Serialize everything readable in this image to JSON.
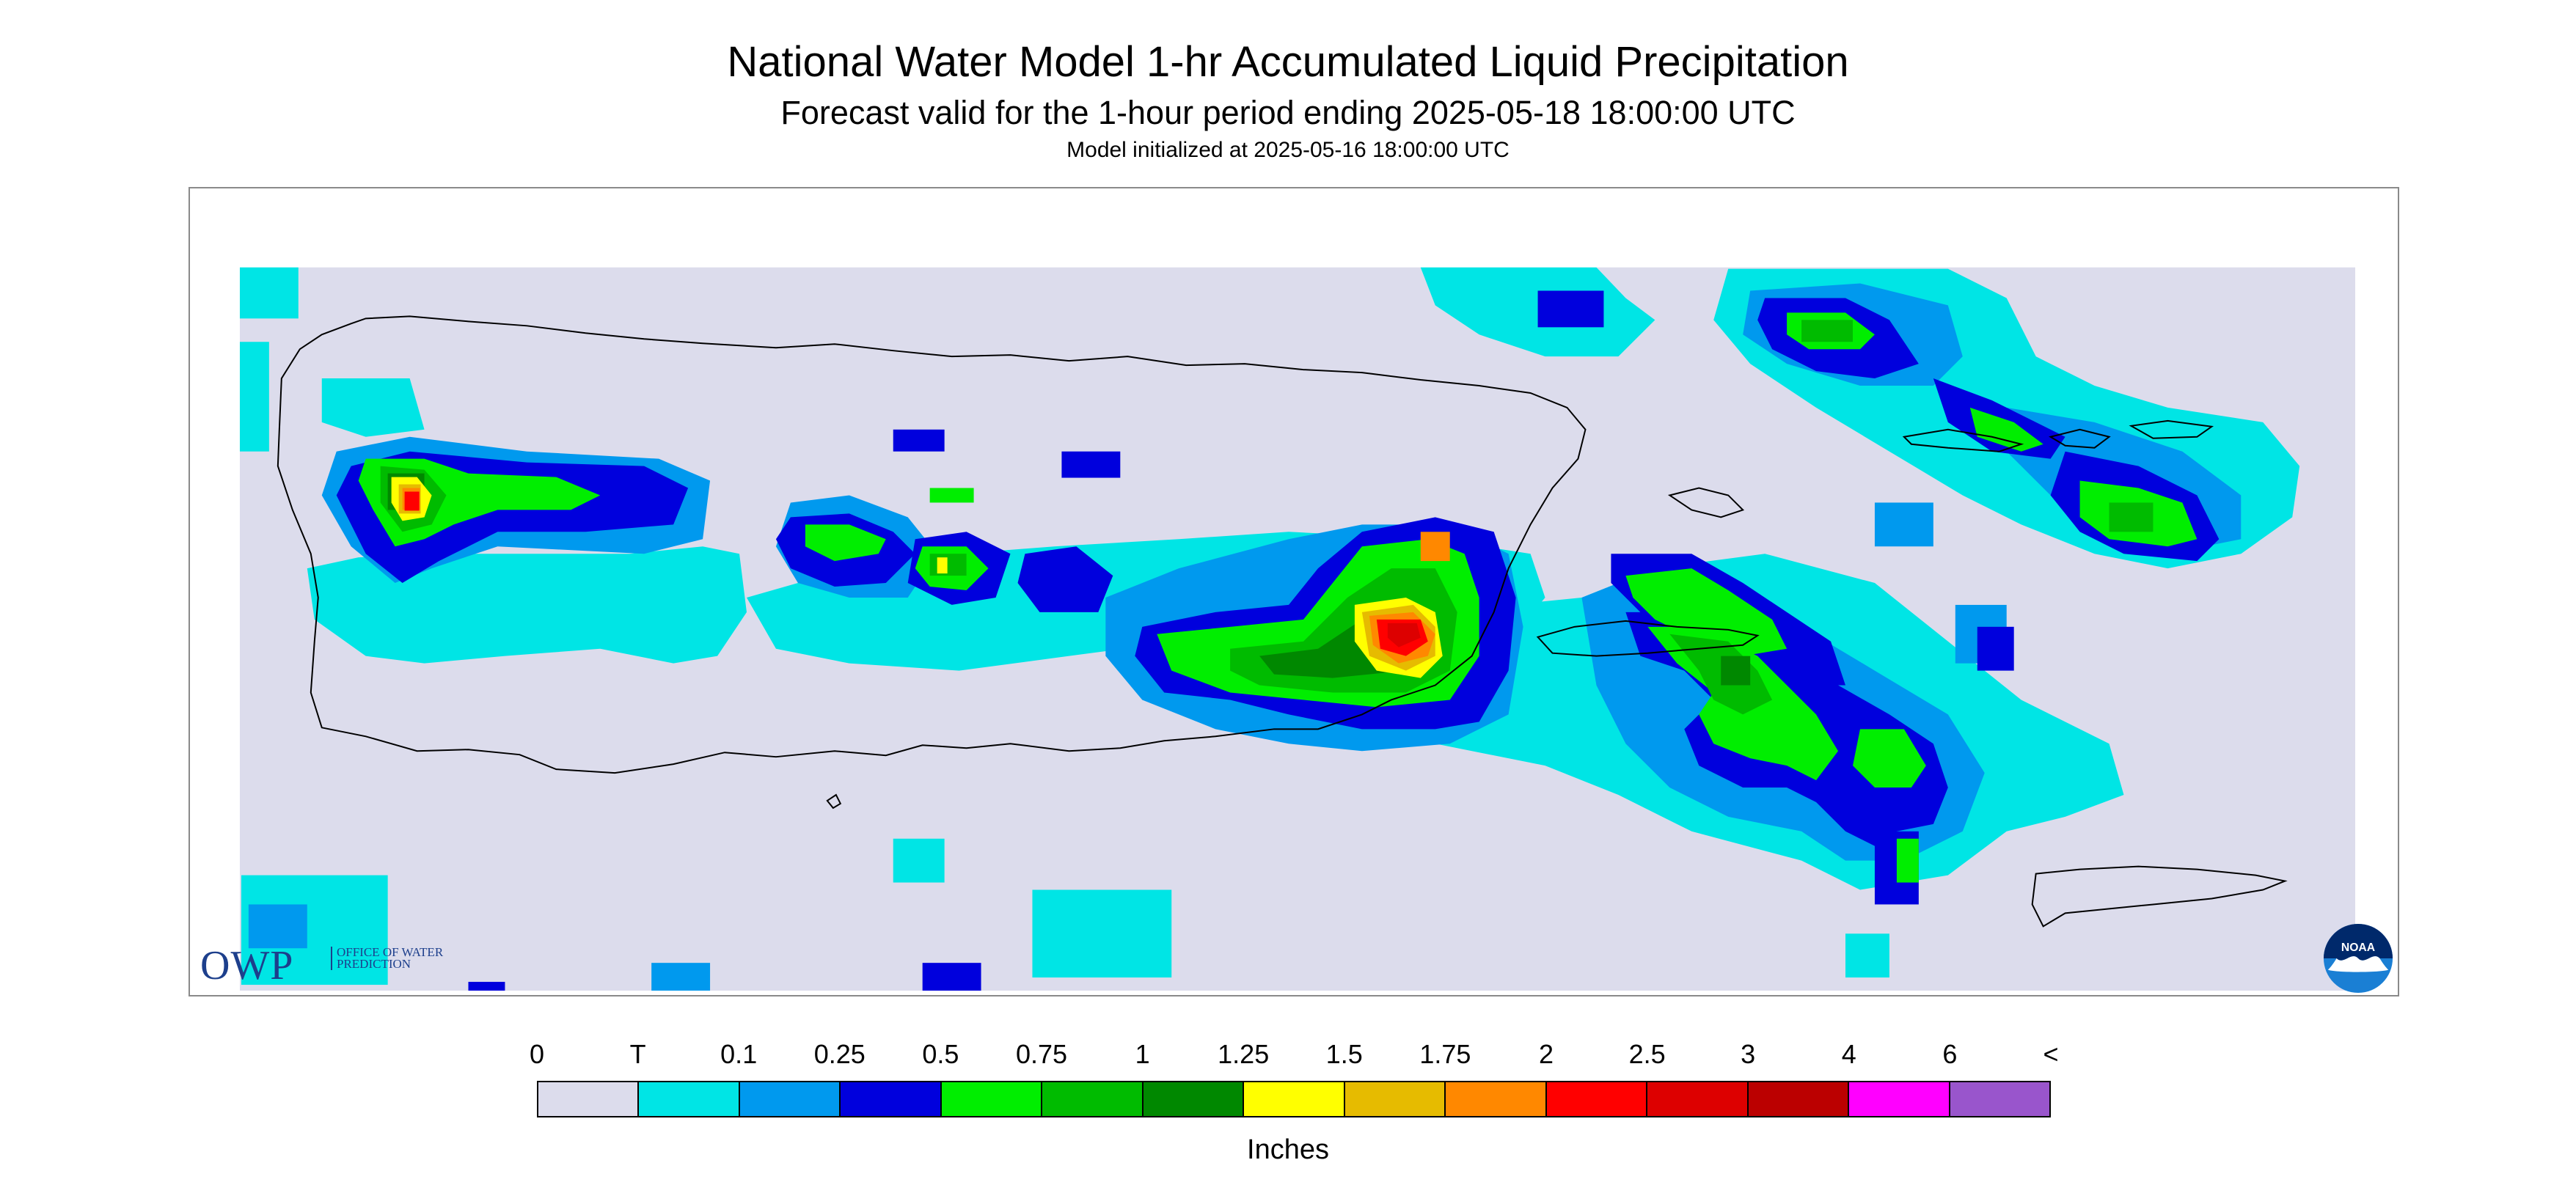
{
  "header": {
    "title": "National Water Model 1-hr Accumulated Liquid Precipitation",
    "subtitle": "Forecast valid for the 1-hour period ending 2025-05-18 18:00:00 UTC",
    "initialized": "Model initialized at 2025-05-16 18:00:00 UTC"
  },
  "map": {
    "background_color": "#dcdcec",
    "region": "Puerto Rico and U.S. Virgin Islands",
    "coastline_color": "#000000"
  },
  "logos": {
    "owp": {
      "letters": "OWP",
      "subtitle": "Office of Water Prediction"
    },
    "noaa": {
      "text": "NOAA"
    }
  },
  "legend": {
    "labels": [
      "0",
      "T",
      "0.1",
      "0.25",
      "0.5",
      "0.75",
      "1",
      "1.25",
      "1.5",
      "1.75",
      "2",
      "2.5",
      "3",
      "4",
      "6",
      "<"
    ],
    "colors": [
      "#dcdcec",
      "#00e5e5",
      "#0099ee",
      "#0000dd",
      "#00ee00",
      "#00bb00",
      "#008800",
      "#ffff00",
      "#e6bb00",
      "#ff8800",
      "#ff0000",
      "#dd0000",
      "#bb0000",
      "#ff00ff",
      "#9955cc"
    ],
    "unit": "Inches"
  }
}
